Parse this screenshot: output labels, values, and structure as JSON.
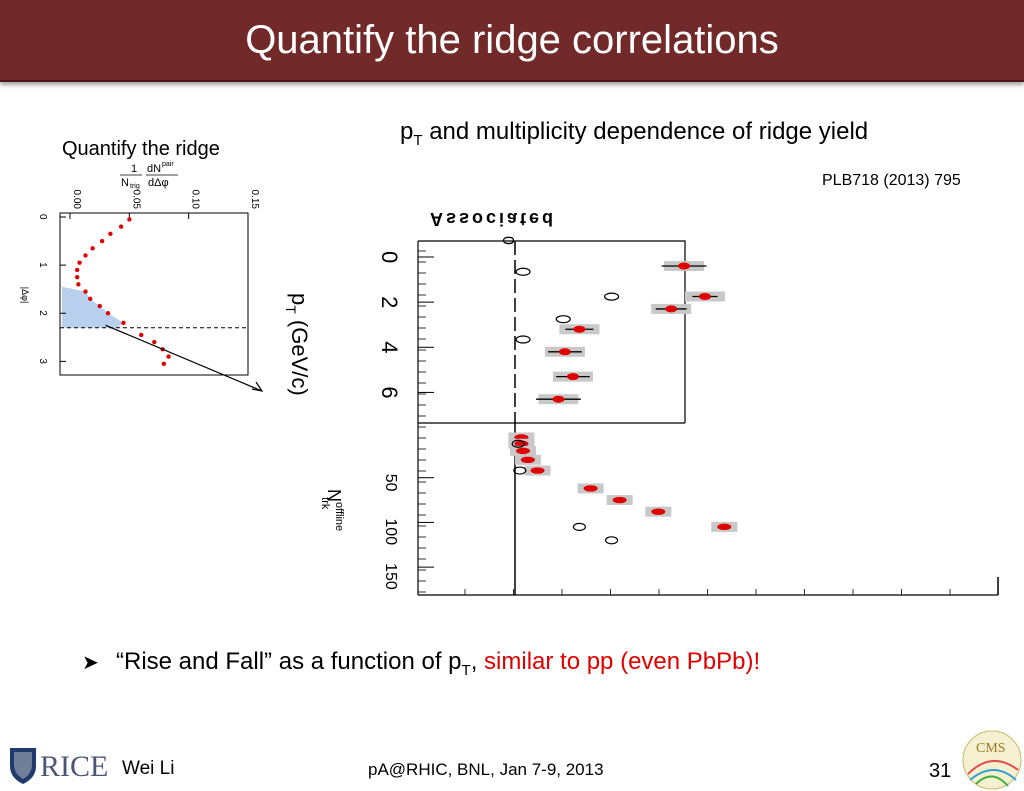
{
  "slide": {
    "title": "Quantify the ridge correlations",
    "left_caption": "Quantify the ridge",
    "heading": {
      "prefix": "p",
      "sub": "T",
      "suffix": " and multiplicity dependence of ridge yield"
    },
    "citation": "PLB718 (2013) 795",
    "bullet": {
      "text1": "“Rise and Fall” as a function of p",
      "sub": "T",
      "text2": ", ",
      "red_text": "similar to pp (even PbPb)!"
    },
    "footer": {
      "author": "Wei Li",
      "conference": "pA@RHIC, BNL, Jan 7-9, 2013",
      "page": "31"
    },
    "logos": {
      "rice": "RICE",
      "cms": "CMS"
    }
  },
  "left_plot": {
    "y_title": {
      "num": "1",
      "den": "N",
      "den_sub": "trig",
      "frac2_num": "dN",
      "frac2_sup": "pair",
      "frac2_den": "dΔφ"
    },
    "y_ticks": [
      "0.00",
      "0.05",
      "0.10",
      "0.15"
    ],
    "x_label": "|Δφ|",
    "x_ticks": [
      "0",
      "1",
      "2",
      "3"
    ],
    "points": [
      {
        "dphi": 0.05,
        "y": 0.045
      },
      {
        "dphi": 0.2,
        "y": 0.038
      },
      {
        "dphi": 0.35,
        "y": 0.029
      },
      {
        "dphi": 0.5,
        "y": 0.022
      },
      {
        "dphi": 0.65,
        "y": 0.014
      },
      {
        "dphi": 0.8,
        "y": 0.008
      },
      {
        "dphi": 0.95,
        "y": 0.003
      },
      {
        "dphi": 1.1,
        "y": 0.001
      },
      {
        "dphi": 1.25,
        "y": 0.001
      },
      {
        "dphi": 1.4,
        "y": 0.002
      },
      {
        "dphi": 1.55,
        "y": 0.008
      },
      {
        "dphi": 1.7,
        "y": 0.012
      },
      {
        "dphi": 1.85,
        "y": 0.02
      },
      {
        "dphi": 2.0,
        "y": 0.027
      },
      {
        "dphi": 2.2,
        "y": 0.04
      },
      {
        "dphi": 2.45,
        "y": 0.055
      },
      {
        "dphi": 2.6,
        "y": 0.066
      },
      {
        "dphi": 2.75,
        "y": 0.073
      },
      {
        "dphi": 2.9,
        "y": 0.078
      },
      {
        "dphi": 3.05,
        "y": 0.074
      }
    ],
    "ridge_region_max_dphi": 2.3,
    "colors": {
      "points": "#e00000",
      "shade": "#b8cfee"
    }
  },
  "right_plot": {
    "partial_header": "Associated",
    "top_axis_label": {
      "p": "p",
      "sub": "T",
      "unit": " (GeV/c)"
    },
    "top_ticks": [
      "0",
      "2",
      "4",
      "6"
    ],
    "bottom_axis_label": {
      "n": "N",
      "sup": "offline",
      "sub": "trk"
    },
    "bottom_ticks": [
      "50",
      "100",
      "150"
    ],
    "header_zero": "0",
    "pt_points": [
      {
        "pt": 0.4,
        "ridge": 0.105,
        "xerr": 0.8
      },
      {
        "pt": 1.75,
        "ridge": 0.118,
        "xerr": 0.45
      },
      {
        "pt": 2.3,
        "ridge": 0.097,
        "xerr": 0.55
      },
      {
        "pt": 3.2,
        "ridge": 0.04,
        "xerr": 0.5
      },
      {
        "pt": 4.2,
        "ridge": 0.031,
        "xerr": 0.6
      },
      {
        "pt": 5.3,
        "ridge": 0.036,
        "xerr": 0.6
      },
      {
        "pt": 6.3,
        "ridge": 0.027,
        "xerr": 0.8
      }
    ],
    "pt_open": [
      {
        "pt": 0.3,
        "v": 0.005
      },
      {
        "pt": 1.4,
        "v": 0.06
      },
      {
        "pt": 2.4,
        "v": 0.03
      },
      {
        "pt": 3.3,
        "v": 0.005
      }
    ],
    "n_points": [
      {
        "n": 5,
        "ridge": 0.004
      },
      {
        "n": 12,
        "ridge": 0.004
      },
      {
        "n": 20,
        "ridge": 0.005
      },
      {
        "n": 30,
        "ridge": 0.008
      },
      {
        "n": 42,
        "ridge": 0.014
      },
      {
        "n": 62,
        "ridge": 0.047
      },
      {
        "n": 75,
        "ridge": 0.065
      },
      {
        "n": 88,
        "ridge": 0.089
      },
      {
        "n": 105,
        "ridge": 0.13
      }
    ],
    "n_open": [
      {
        "n": 12,
        "v": 0.002
      },
      {
        "n": 42,
        "v": 0.003
      },
      {
        "n": 105,
        "v": 0.04
      },
      {
        "n": 120,
        "v": 0.06
      }
    ],
    "colors": {
      "points": "#e00000",
      "boxes": "#c8c8c8"
    }
  }
}
